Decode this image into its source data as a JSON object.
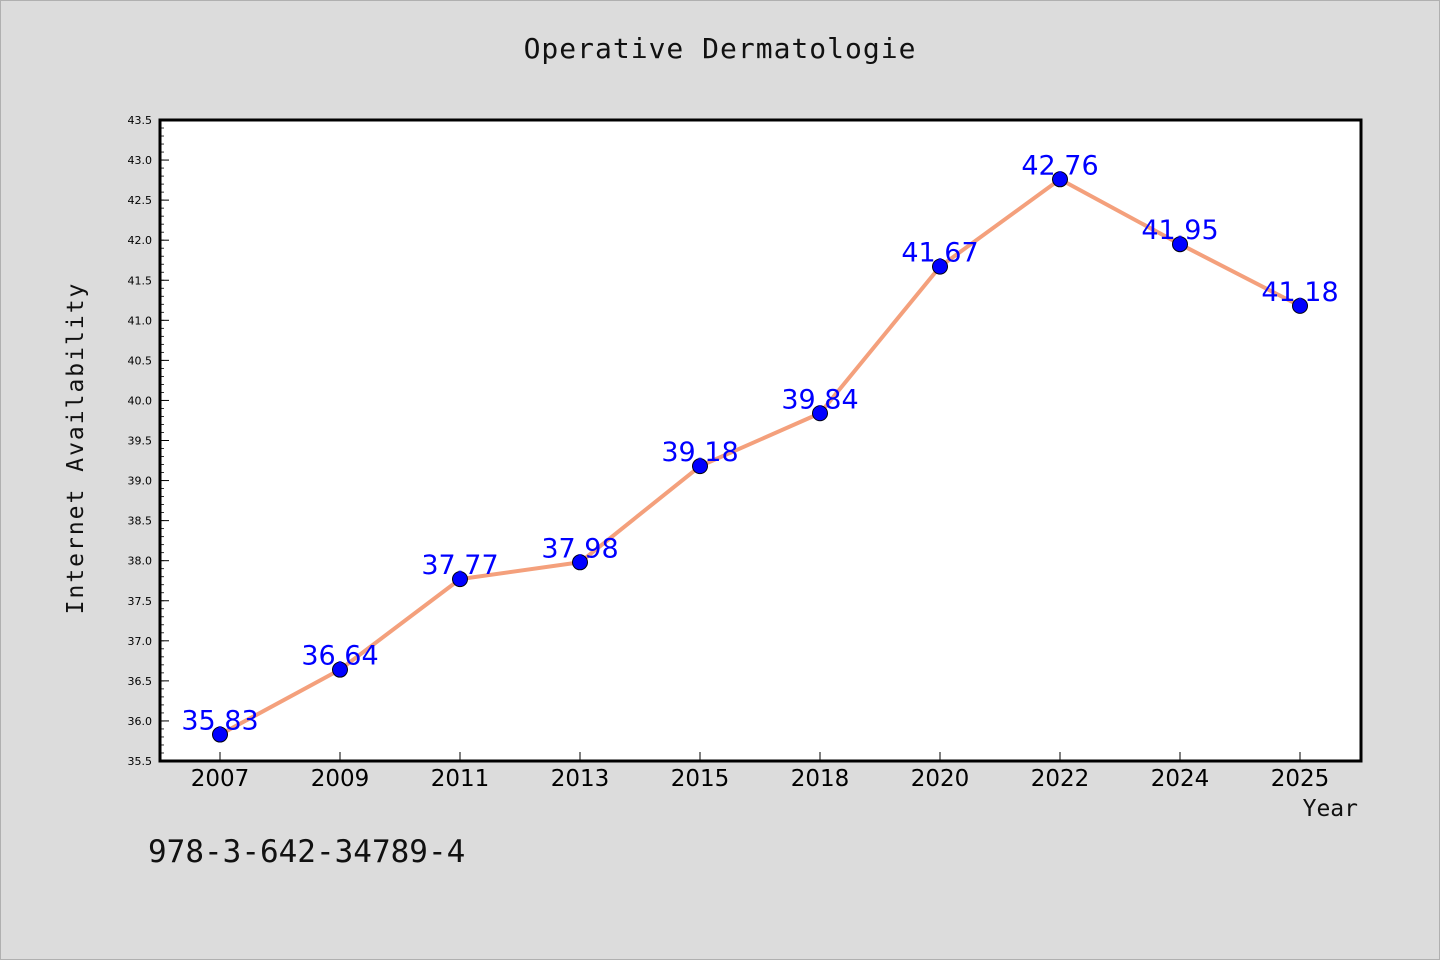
{
  "chart_data": {
    "type": "line",
    "title": "Operative Dermatologie",
    "xlabel": "Year",
    "ylabel": "Internet Availability",
    "categories": [
      "2007",
      "2009",
      "2011",
      "2013",
      "2015",
      "2018",
      "2020",
      "2022",
      "2024",
      "2025"
    ],
    "series": [
      {
        "values": [
          35.83,
          36.64,
          37.77,
          37.98,
          39.18,
          39.84,
          41.67,
          42.76,
          41.95,
          41.18
        ],
        "data_labels": [
          "35.83",
          "36.64",
          "37.77",
          "37.98",
          "39.18",
          "39.84",
          "41.67",
          "42.76",
          "41.95",
          "41.18"
        ],
        "line_color": "#f4a07c",
        "marker_color": "#0000ff"
      }
    ],
    "ylim": [
      35.5,
      43.5
    ],
    "yticks": [
      "35.5",
      "36.0",
      "36.5",
      "37.0",
      "37.5",
      "38.0",
      "38.5",
      "39.0",
      "39.5",
      "40.0",
      "40.5",
      "41.0",
      "41.5",
      "42.0",
      "42.5",
      "43.0",
      "43.5"
    ],
    "grid": false,
    "legend": "none",
    "label_color": "#0000ff"
  },
  "footer": {
    "code": "978-3-642-34789-4"
  }
}
